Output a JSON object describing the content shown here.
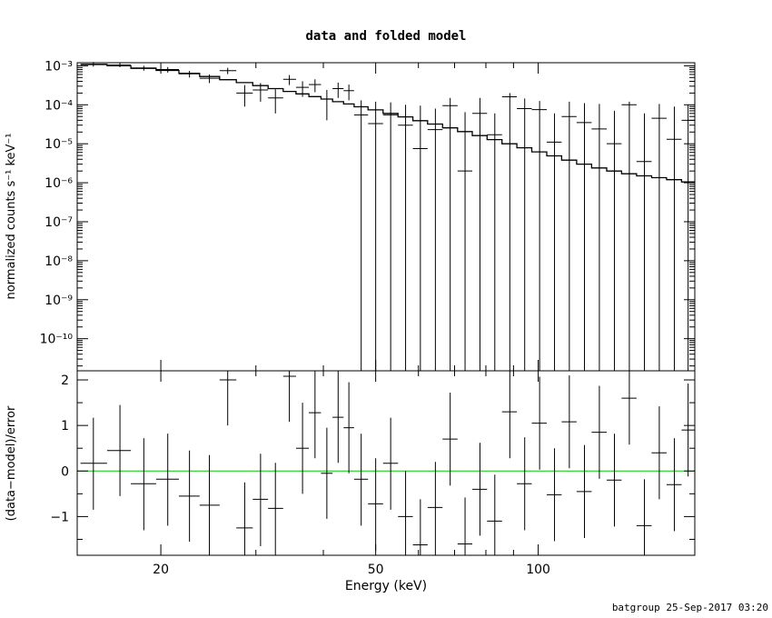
{
  "chart_data": [
    {
      "type": "scatter",
      "panel": "top",
      "title": "data and folded model",
      "xlabel": "",
      "ylabel": "normalized counts s⁻¹ keV⁻¹",
      "xscale": "log",
      "yscale": "log",
      "xlim": [
        14,
        195
      ],
      "ylim": [
        1.5e-11,
        0.0012
      ],
      "ytick_labels": [
        "10⁻³",
        "10⁻⁴",
        "10⁻⁵",
        "10⁻⁶",
        "10⁻⁷",
        "10⁻⁸",
        "10⁻⁹",
        "10⁻¹⁰"
      ],
      "ytick_values": [
        0.001,
        0.0001,
        1e-05,
        1e-06,
        1e-07,
        1e-08,
        1e-09,
        1e-10
      ],
      "series": [
        {
          "name": "",
          "points": [
            {
              "x": 15.0,
              "y": 0.0011,
              "xlo": 14.2,
              "xhi": 15.9,
              "ylo": 0.00095,
              "yhi": 0.00125
            },
            {
              "x": 16.8,
              "y": 0.00105,
              "xlo": 15.9,
              "xhi": 17.6,
              "ylo": 0.00092,
              "yhi": 0.0012
            },
            {
              "x": 18.6,
              "y": 0.00088,
              "xlo": 17.6,
              "xhi": 19.6,
              "ylo": 0.00075,
              "yhi": 0.001
            },
            {
              "x": 20.6,
              "y": 0.0008,
              "xlo": 19.6,
              "xhi": 21.6,
              "ylo": 0.00067,
              "yhi": 0.00093
            },
            {
              "x": 22.6,
              "y": 0.00062,
              "xlo": 21.6,
              "xhi": 23.6,
              "ylo": 0.0005,
              "yhi": 0.00074
            },
            {
              "x": 24.6,
              "y": 0.00048,
              "xlo": 23.6,
              "xhi": 25.7,
              "ylo": 0.00036,
              "yhi": 0.0006
            },
            {
              "x": 26.6,
              "y": 0.00075,
              "xlo": 25.7,
              "xhi": 27.6,
              "ylo": 0.00061,
              "yhi": 0.00089
            },
            {
              "x": 28.6,
              "y": 0.0002,
              "xlo": 27.6,
              "xhi": 29.6,
              "ylo": 9e-05,
              "yhi": 0.00032
            },
            {
              "x": 30.6,
              "y": 0.00024,
              "xlo": 29.6,
              "xhi": 31.6,
              "ylo": 0.00012,
              "yhi": 0.00036
            },
            {
              "x": 32.6,
              "y": 0.00015,
              "xlo": 31.6,
              "xhi": 33.7,
              "ylo": 6e-05,
              "yhi": 0.00025
            },
            {
              "x": 34.6,
              "y": 0.00045,
              "xlo": 33.7,
              "xhi": 35.6,
              "ylo": 0.00032,
              "yhi": 0.00058
            },
            {
              "x": 36.6,
              "y": 0.00028,
              "xlo": 35.6,
              "xhi": 37.6,
              "ylo": 0.00016,
              "yhi": 0.0004
            },
            {
              "x": 38.6,
              "y": 0.00033,
              "xlo": 37.6,
              "xhi": 39.6,
              "ylo": 0.00021,
              "yhi": 0.00045
            },
            {
              "x": 40.6,
              "y": 0.00014,
              "xlo": 39.6,
              "xhi": 41.6,
              "ylo": 4e-05,
              "yhi": 0.00024
            },
            {
              "x": 42.6,
              "y": 0.00026,
              "xlo": 41.6,
              "xhi": 43.6,
              "ylo": 0.00015,
              "yhi": 0.00037
            },
            {
              "x": 44.6,
              "y": 0.00023,
              "xlo": 43.6,
              "xhi": 45.6,
              "ylo": 0.00013,
              "yhi": 0.00033
            },
            {
              "x": 47.0,
              "y": 5.5e-05,
              "xlo": 45.6,
              "xhi": 48.4,
              "ylo": 1.5e-11,
              "yhi": 0.00013
            },
            {
              "x": 50.0,
              "y": 3.3e-05,
              "xlo": 48.4,
              "xhi": 51.6,
              "ylo": 1.5e-11,
              "yhi": 0.00012
            },
            {
              "x": 53.3,
              "y": 5.5e-05,
              "xlo": 51.6,
              "xhi": 55.0,
              "ylo": 1.5e-11,
              "yhi": 0.000115
            },
            {
              "x": 56.8,
              "y": 3e-05,
              "xlo": 55.0,
              "xhi": 58.6,
              "ylo": 1.5e-11,
              "yhi": 0.0001
            },
            {
              "x": 60.5,
              "y": 7.5e-06,
              "xlo": 58.6,
              "xhi": 62.4,
              "ylo": 1.5e-11,
              "yhi": 9.5e-05
            },
            {
              "x": 64.5,
              "y": 2.3e-05,
              "xlo": 62.4,
              "xhi": 66.5,
              "ylo": 1.5e-11,
              "yhi": 8e-05
            },
            {
              "x": 68.7,
              "y": 9.5e-05,
              "xlo": 66.5,
              "xhi": 70.9,
              "ylo": 1.5e-11,
              "yhi": 0.00015
            },
            {
              "x": 73.2,
              "y": 2e-06,
              "xlo": 70.9,
              "xhi": 75.5,
              "ylo": 1.5e-11,
              "yhi": 6.5e-05
            },
            {
              "x": 78.0,
              "y": 6e-05,
              "xlo": 75.5,
              "xhi": 80.4,
              "ylo": 1.5e-11,
              "yhi": 0.00015
            },
            {
              "x": 83.1,
              "y": 1.7e-05,
              "xlo": 80.4,
              "xhi": 85.7,
              "ylo": 1.5e-11,
              "yhi": 6e-05
            },
            {
              "x": 88.6,
              "y": 0.00016,
              "xlo": 85.7,
              "xhi": 91.3,
              "ylo": 1.5e-11,
              "yhi": 0.0002
            },
            {
              "x": 94.4,
              "y": 8e-05,
              "xlo": 91.3,
              "xhi": 97.3,
              "ylo": 1.5e-11,
              "yhi": 0.000145
            },
            {
              "x": 100.6,
              "y": 7.5e-05,
              "xlo": 97.3,
              "xhi": 103.7,
              "ylo": 1.5e-11,
              "yhi": 0.000125
            },
            {
              "x": 107.2,
              "y": 1.1e-05,
              "xlo": 103.7,
              "xhi": 110.5,
              "ylo": 1.5e-11,
              "yhi": 6e-05
            },
            {
              "x": 114.2,
              "y": 5e-05,
              "xlo": 110.5,
              "xhi": 117.8,
              "ylo": 1.5e-11,
              "yhi": 0.00012
            },
            {
              "x": 121.8,
              "y": 3.5e-05,
              "xlo": 117.8,
              "xhi": 125.6,
              "ylo": 1.5e-11,
              "yhi": 0.00011
            },
            {
              "x": 129.8,
              "y": 2.4e-05,
              "xlo": 125.6,
              "xhi": 133.9,
              "ylo": 1.5e-11,
              "yhi": 0.000105
            },
            {
              "x": 138.4,
              "y": 1e-05,
              "xlo": 133.9,
              "xhi": 142.7,
              "ylo": 1.5e-11,
              "yhi": 7e-05
            },
            {
              "x": 147.5,
              "y": 0.0001,
              "xlo": 142.7,
              "xhi": 152.1,
              "ylo": 1.5e-11,
              "yhi": 0.00012
            },
            {
              "x": 157.3,
              "y": 3.5e-06,
              "xlo": 152.1,
              "xhi": 162.2,
              "ylo": 1.5e-11,
              "yhi": 6e-05
            },
            {
              "x": 167.6,
              "y": 4.5e-05,
              "xlo": 162.2,
              "xhi": 172.9,
              "ylo": 1.5e-11,
              "yhi": 0.000105
            },
            {
              "x": 178.7,
              "y": 1.3e-05,
              "xlo": 172.9,
              "xhi": 184.3,
              "ylo": 1.5e-11,
              "yhi": 9e-05
            },
            {
              "x": 189.5,
              "y": 4e-05,
              "xlo": 184.3,
              "xhi": 195.0,
              "ylo": 1.5e-11,
              "yhi": 0.0001
            }
          ]
        }
      ],
      "model": {
        "name": "",
        "edges": [
          14.2,
          15.9,
          17.6,
          19.6,
          21.6,
          23.6,
          25.7,
          27.6,
          29.6,
          31.6,
          33.7,
          35.6,
          37.6,
          39.6,
          41.6,
          43.6,
          45.6,
          48.4,
          51.6,
          55.0,
          58.6,
          62.4,
          66.5,
          70.9,
          75.5,
          80.4,
          85.7,
          91.3,
          97.3,
          103.7,
          110.5,
          117.8,
          125.6,
          133.9,
          142.7,
          152.1,
          162.2,
          172.9,
          184.3,
          195.0
        ],
        "values": [
          0.00108,
          0.001,
          0.00086,
          0.00076,
          0.00064,
          0.00053,
          0.00044,
          0.00037,
          0.00031,
          0.00026,
          0.00022,
          0.00019,
          0.000162,
          0.00014,
          0.00012,
          0.000105,
          8.9e-05,
          7.4e-05,
          6e-05,
          4.9e-05,
          3.9e-05,
          3.2e-05,
          2.55e-05,
          2.05e-05,
          1.62e-05,
          1.28e-05,
          1e-05,
          7.9e-06,
          6.2e-06,
          4.9e-06,
          3.8e-06,
          3e-06,
          2.4e-06,
          2e-06,
          1.7e-06,
          1.5e-06,
          1.35e-06,
          1.2e-06,
          1.05e-06
        ]
      }
    },
    {
      "type": "scatter",
      "panel": "bottom",
      "xlabel": "Energy (keV)",
      "ylabel": "(data−model)/error",
      "xscale": "log",
      "xlim": [
        14,
        195
      ],
      "ylim": [
        -1.85,
        2.2
      ],
      "xtick_labels": [
        "20",
        "50",
        "100"
      ],
      "xtick_values": [
        20,
        50,
        100
      ],
      "ytick_labels": [
        "2",
        "1",
        "0",
        "−1"
      ],
      "ytick_values": [
        2,
        1,
        0,
        -1
      ],
      "reference_line": {
        "y": 0,
        "color": "#00cc00"
      },
      "series": [
        {
          "name": "",
          "points": [
            {
              "x": 15.0,
              "y": 0.17,
              "xlo": 14.2,
              "xhi": 15.9,
              "ylo": -0.85,
              "yhi": 1.17
            },
            {
              "x": 16.8,
              "y": 0.45,
              "xlo": 15.9,
              "xhi": 17.6,
              "ylo": -0.55,
              "yhi": 1.45
            },
            {
              "x": 18.6,
              "y": -0.28,
              "xlo": 17.6,
              "xhi": 19.6,
              "ylo": -1.3,
              "yhi": 0.72
            },
            {
              "x": 20.6,
              "y": -0.18,
              "xlo": 19.6,
              "xhi": 21.6,
              "ylo": -1.2,
              "yhi": 0.82
            },
            {
              "x": 22.6,
              "y": -0.55,
              "xlo": 21.6,
              "xhi": 23.6,
              "ylo": -1.55,
              "yhi": 0.45
            },
            {
              "x": 24.6,
              "y": -0.75,
              "xlo": 23.6,
              "xhi": 25.7,
              "ylo": -1.85,
              "yhi": 0.35
            },
            {
              "x": 26.6,
              "y": 2.0,
              "xlo": 25.7,
              "xhi": 27.6,
              "ylo": 1.0,
              "yhi": 2.2
            },
            {
              "x": 28.6,
              "y": -1.25,
              "xlo": 27.6,
              "xhi": 29.6,
              "ylo": -1.85,
              "yhi": -0.25
            },
            {
              "x": 30.6,
              "y": -0.62,
              "xlo": 29.6,
              "xhi": 31.6,
              "ylo": -1.65,
              "yhi": 0.38
            },
            {
              "x": 32.6,
              "y": -0.82,
              "xlo": 31.6,
              "xhi": 33.7,
              "ylo": -1.85,
              "yhi": 0.18
            },
            {
              "x": 34.6,
              "y": 2.08,
              "xlo": 33.7,
              "xhi": 35.6,
              "ylo": 1.08,
              "yhi": 2.2
            },
            {
              "x": 36.6,
              "y": 0.5,
              "xlo": 35.6,
              "xhi": 37.6,
              "ylo": -0.5,
              "yhi": 1.5
            },
            {
              "x": 38.6,
              "y": 1.28,
              "xlo": 37.6,
              "xhi": 39.6,
              "ylo": 0.28,
              "yhi": 2.2
            },
            {
              "x": 40.6,
              "y": -0.05,
              "xlo": 39.6,
              "xhi": 41.6,
              "ylo": -1.05,
              "yhi": 0.95
            },
            {
              "x": 42.6,
              "y": 1.18,
              "xlo": 41.6,
              "xhi": 43.6,
              "ylo": 0.18,
              "yhi": 2.2
            },
            {
              "x": 44.6,
              "y": 0.95,
              "xlo": 43.6,
              "xhi": 45.6,
              "ylo": -0.05,
              "yhi": 1.95
            },
            {
              "x": 47.0,
              "y": -0.18,
              "xlo": 45.6,
              "xhi": 48.4,
              "ylo": -1.2,
              "yhi": 0.82
            },
            {
              "x": 50.0,
              "y": -0.72,
              "xlo": 48.4,
              "xhi": 51.6,
              "ylo": -1.75,
              "yhi": 0.28
            },
            {
              "x": 53.3,
              "y": 0.17,
              "xlo": 51.6,
              "xhi": 55.0,
              "ylo": -0.85,
              "yhi": 1.17
            },
            {
              "x": 56.8,
              "y": -1.0,
              "xlo": 55.0,
              "xhi": 58.6,
              "ylo": -1.85,
              "yhi": 0.0
            },
            {
              "x": 60.5,
              "y": -1.62,
              "xlo": 58.6,
              "xhi": 62.4,
              "ylo": -1.85,
              "yhi": -0.62
            },
            {
              "x": 64.5,
              "y": -0.8,
              "xlo": 62.4,
              "xhi": 66.5,
              "ylo": -1.85,
              "yhi": 0.2
            },
            {
              "x": 68.7,
              "y": 0.7,
              "xlo": 66.5,
              "xhi": 70.9,
              "ylo": -0.32,
              "yhi": 1.72
            },
            {
              "x": 73.2,
              "y": -1.6,
              "xlo": 70.9,
              "xhi": 75.5,
              "ylo": -1.85,
              "yhi": -0.58
            },
            {
              "x": 78.0,
              "y": -0.4,
              "xlo": 75.5,
              "xhi": 80.4,
              "ylo": -1.42,
              "yhi": 0.62
            },
            {
              "x": 83.1,
              "y": -1.1,
              "xlo": 80.4,
              "xhi": 85.7,
              "ylo": -1.85,
              "yhi": -0.08
            },
            {
              "x": 88.6,
              "y": 1.3,
              "xlo": 85.7,
              "xhi": 91.3,
              "ylo": 0.28,
              "yhi": 2.2
            },
            {
              "x": 94.4,
              "y": -0.28,
              "xlo": 91.3,
              "xhi": 97.3,
              "ylo": -1.3,
              "yhi": 0.74
            },
            {
              "x": 100.6,
              "y": 1.05,
              "xlo": 97.3,
              "xhi": 103.7,
              "ylo": 0.03,
              "yhi": 2.07
            },
            {
              "x": 107.2,
              "y": -0.52,
              "xlo": 103.7,
              "xhi": 110.5,
              "ylo": -1.54,
              "yhi": 0.5
            },
            {
              "x": 114.2,
              "y": 1.08,
              "xlo": 110.5,
              "xhi": 117.8,
              "ylo": 0.06,
              "yhi": 2.1
            },
            {
              "x": 121.8,
              "y": -0.45,
              "xlo": 117.8,
              "xhi": 125.6,
              "ylo": -1.47,
              "yhi": 0.57
            },
            {
              "x": 129.8,
              "y": 0.85,
              "xlo": 125.6,
              "xhi": 133.9,
              "ylo": -0.17,
              "yhi": 1.87
            },
            {
              "x": 138.4,
              "y": -0.2,
              "xlo": 133.9,
              "xhi": 142.7,
              "ylo": -1.22,
              "yhi": 0.82
            },
            {
              "x": 147.5,
              "y": 1.6,
              "xlo": 142.7,
              "xhi": 152.1,
              "ylo": 0.58,
              "yhi": 2.2
            },
            {
              "x": 157.3,
              "y": -1.2,
              "xlo": 152.1,
              "xhi": 162.2,
              "ylo": -1.85,
              "yhi": -0.18
            },
            {
              "x": 167.6,
              "y": 0.4,
              "xlo": 162.2,
              "xhi": 172.9,
              "ylo": -0.62,
              "yhi": 1.42
            },
            {
              "x": 178.7,
              "y": -0.3,
              "xlo": 172.9,
              "xhi": 184.3,
              "ylo": -1.32,
              "yhi": 0.72
            },
            {
              "x": 189.5,
              "y": 0.9,
              "xlo": 184.3,
              "xhi": 195.0,
              "ylo": -0.12,
              "yhi": 1.92
            }
          ]
        }
      ]
    }
  ],
  "footer": "batgroup 25-Sep-2017 03:20"
}
